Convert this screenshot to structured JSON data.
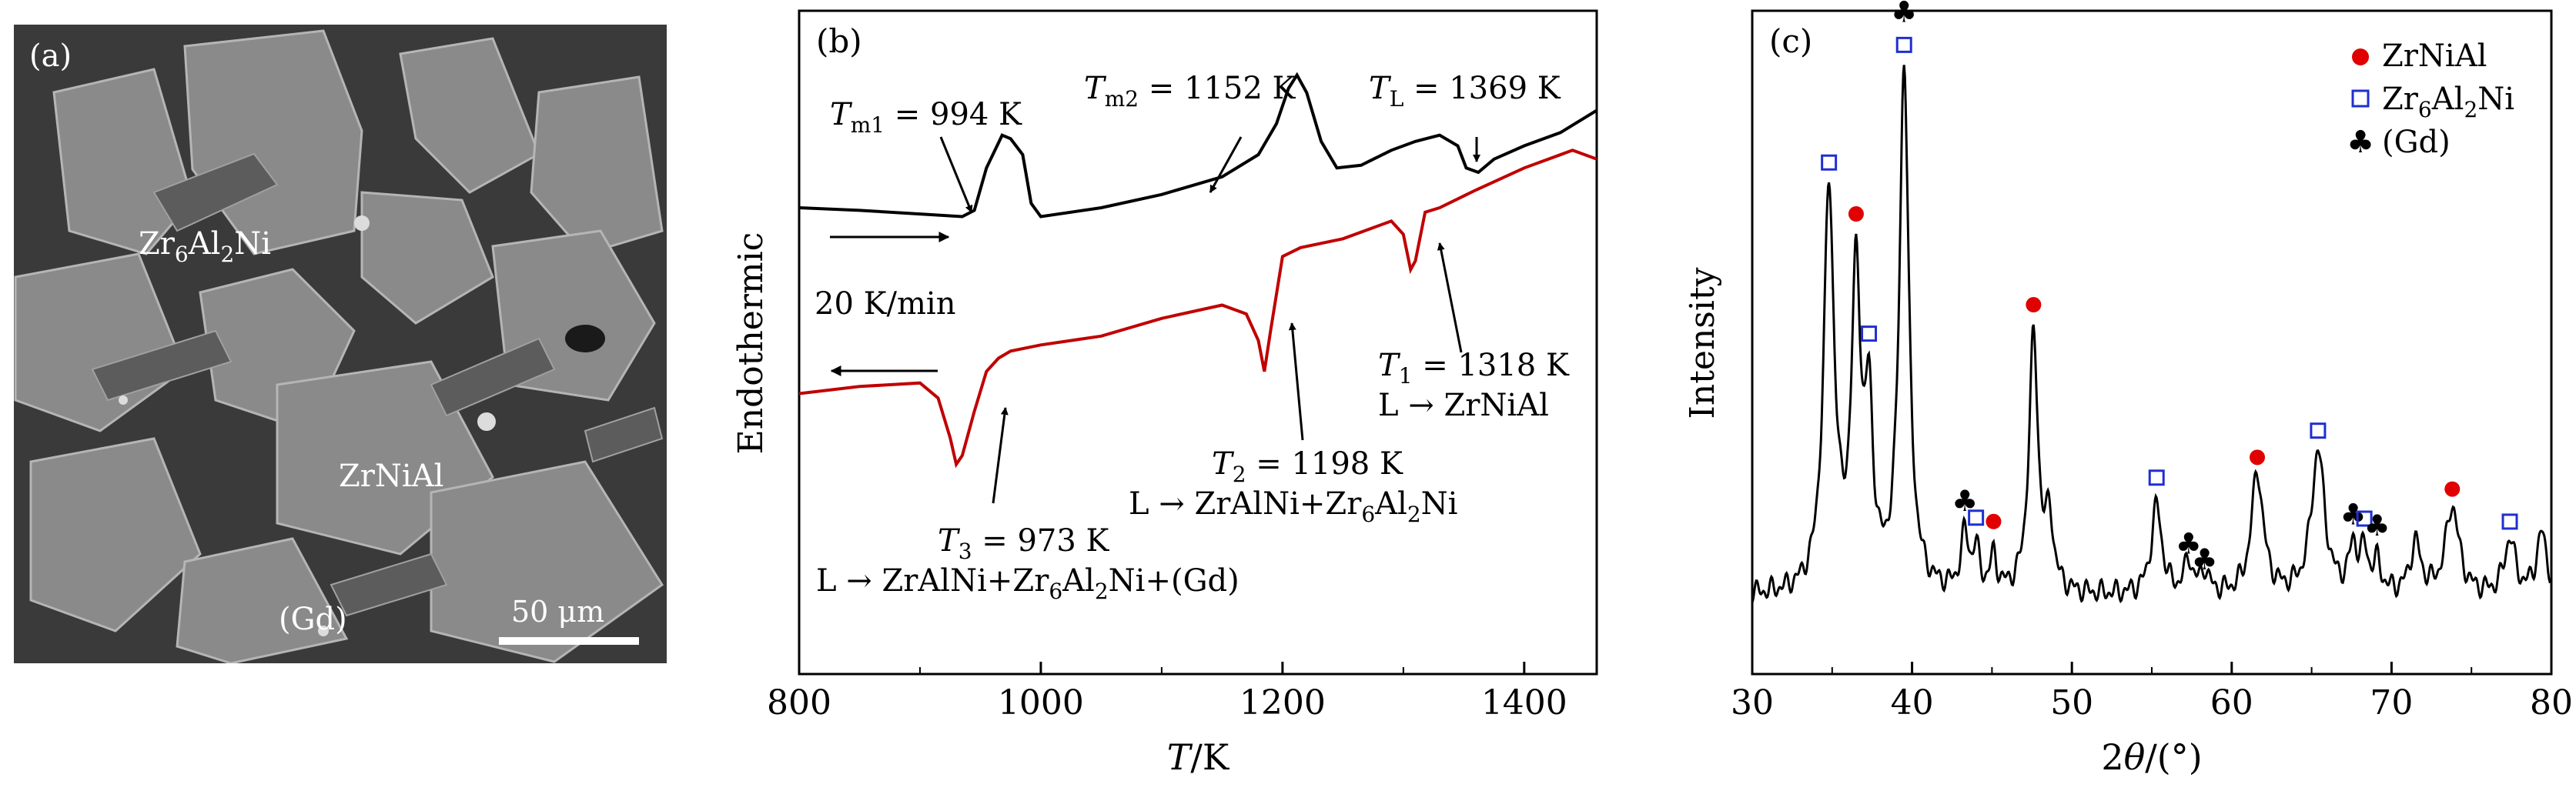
{
  "panel_a": {
    "label": "(a)",
    "phase_labels": {
      "zr6al2ni": "Zr6Al2Ni",
      "zrnial": "ZrNiAl",
      "gd": "(Gd)"
    },
    "scale_bar": "50 μm"
  },
  "chart_data": [
    {
      "type": "line",
      "panel_label": "(b)",
      "xlabel": "T/K",
      "ylabel": "Endothermic",
      "xlim": [
        800,
        1460
      ],
      "xticks": [
        800,
        1000,
        1200,
        1400
      ],
      "yticks_shown": false,
      "series": [
        {
          "name": "",
          "direction": "heating",
          "color": "#000000",
          "x": [
            800,
            850,
            900,
            935,
            945,
            955,
            968,
            975,
            985,
            992,
            1000,
            1050,
            1100,
            1150,
            1180,
            1195,
            1205,
            1212,
            1220,
            1232,
            1245,
            1265,
            1290,
            1310,
            1330,
            1345,
            1352,
            1362,
            1375,
            1400,
            1430,
            1460
          ],
          "y": [
            0.0,
            -0.03,
            -0.07,
            -0.1,
            -0.03,
            0.45,
            0.82,
            0.78,
            0.6,
            0.05,
            -0.1,
            0.0,
            0.15,
            0.35,
            0.6,
            0.95,
            1.35,
            1.5,
            1.3,
            0.75,
            0.45,
            0.48,
            0.65,
            0.75,
            0.82,
            0.7,
            0.45,
            0.4,
            0.55,
            0.7,
            0.85,
            1.1
          ]
        },
        {
          "name": "",
          "direction": "cooling",
          "color": "#c00000",
          "x": [
            800,
            850,
            900,
            915,
            925,
            930,
            935,
            945,
            955,
            965,
            975,
            1000,
            1050,
            1100,
            1150,
            1170,
            1180,
            1185,
            1190,
            1200,
            1215,
            1250,
            1290,
            1300,
            1306,
            1310,
            1318,
            1330,
            1360,
            1400,
            1440,
            1460
          ],
          "y": [
            -2.1,
            -2.02,
            -1.98,
            -2.15,
            -2.6,
            -2.9,
            -2.8,
            -2.3,
            -1.85,
            -1.7,
            -1.62,
            -1.55,
            -1.45,
            -1.25,
            -1.1,
            -1.2,
            -1.5,
            -1.85,
            -1.4,
            -0.55,
            -0.45,
            -0.35,
            -0.15,
            -0.3,
            -0.7,
            -0.6,
            -0.05,
            0.0,
            0.2,
            0.45,
            0.65,
            0.55
          ]
        }
      ],
      "annotations": [
        {
          "id": "tm1",
          "sym": "T",
          "sub": "m1",
          "text": " = 994 K"
        },
        {
          "id": "tm2",
          "sym": "T",
          "sub": "m2",
          "text": " = 1152 K"
        },
        {
          "id": "tl",
          "sym": "T",
          "sub": "L",
          "text": " = 1369 K"
        },
        {
          "id": "t1",
          "sym": "T",
          "sub": "1",
          "text": " = 1318 K",
          "line2": "L → ZrNiAl"
        },
        {
          "id": "t2",
          "sym": "T",
          "sub": "2",
          "text": " = 1198 K",
          "line2": "L → ZrAlNi+Zr6Al2Ni"
        },
        {
          "id": "t3",
          "sym": "T",
          "sub": "3",
          "text": " = 973 K",
          "line2": "L → ZrAlNi+Zr6Al2Ni+(Gd)"
        }
      ],
      "rate_label": "20 K/min"
    },
    {
      "type": "line",
      "panel_label": "(c)",
      "xlabel": "2θ/(°)",
      "ylabel": "Intensity",
      "xlim": [
        30,
        80
      ],
      "xticks": [
        30,
        40,
        50,
        60,
        70,
        80
      ],
      "yticks_shown": false,
      "legend_position": "top-right",
      "legend": [
        {
          "label": "ZrNiAl",
          "marker": "filled-circle",
          "color": "#e00000"
        },
        {
          "label": "Zr6Al2Ni",
          "marker": "open-square",
          "color": "#1f2fd0"
        },
        {
          "label": "(Gd)",
          "marker": "club",
          "color": "#000000"
        }
      ],
      "peaks": [
        {
          "two_theta": 34.8,
          "height": 0.72,
          "width": 0.4
        },
        {
          "two_theta": 36.5,
          "height": 0.55,
          "width": 0.35
        },
        {
          "two_theta": 37.3,
          "height": 0.3,
          "width": 0.3
        },
        {
          "two_theta": 39.5,
          "height": 0.95,
          "width": 0.35
        },
        {
          "two_theta": 43.3,
          "height": 0.1,
          "width": 0.3
        },
        {
          "two_theta": 44.0,
          "height": 0.07,
          "width": 0.25
        },
        {
          "two_theta": 45.1,
          "height": 0.06,
          "width": 0.25
        },
        {
          "two_theta": 47.6,
          "height": 0.46,
          "width": 0.35
        },
        {
          "two_theta": 48.6,
          "height": 0.12,
          "width": 0.3
        },
        {
          "two_theta": 55.3,
          "height": 0.16,
          "width": 0.4
        },
        {
          "two_theta": 57.3,
          "height": 0.06,
          "width": 0.3
        },
        {
          "two_theta": 58.3,
          "height": 0.04,
          "width": 0.3
        },
        {
          "two_theta": 61.6,
          "height": 0.22,
          "width": 0.45
        },
        {
          "two_theta": 65.4,
          "height": 0.26,
          "width": 0.5
        },
        {
          "two_theta": 67.6,
          "height": 0.08,
          "width": 0.3
        },
        {
          "two_theta": 68.3,
          "height": 0.07,
          "width": 0.3
        },
        {
          "two_theta": 69.1,
          "height": 0.05,
          "width": 0.3
        },
        {
          "two_theta": 71.5,
          "height": 0.09,
          "width": 0.4
        },
        {
          "two_theta": 73.8,
          "height": 0.16,
          "width": 0.5
        },
        {
          "two_theta": 77.4,
          "height": 0.1,
          "width": 0.4
        },
        {
          "two_theta": 79.4,
          "height": 0.11,
          "width": 0.4
        }
      ],
      "markers": [
        {
          "two_theta": 34.8,
          "type": "square"
        },
        {
          "two_theta": 36.5,
          "type": "circle"
        },
        {
          "two_theta": 37.3,
          "type": "square"
        },
        {
          "two_theta": 39.5,
          "type": "square"
        },
        {
          "two_theta": 39.5,
          "type": "club"
        },
        {
          "two_theta": 43.3,
          "type": "club"
        },
        {
          "two_theta": 44.0,
          "type": "square"
        },
        {
          "two_theta": 45.1,
          "type": "circle"
        },
        {
          "two_theta": 47.6,
          "type": "circle"
        },
        {
          "two_theta": 55.3,
          "type": "square"
        },
        {
          "two_theta": 57.3,
          "type": "club"
        },
        {
          "two_theta": 58.3,
          "type": "club"
        },
        {
          "two_theta": 61.6,
          "type": "circle"
        },
        {
          "two_theta": 65.4,
          "type": "square"
        },
        {
          "two_theta": 67.6,
          "type": "club"
        },
        {
          "two_theta": 68.3,
          "type": "square"
        },
        {
          "two_theta": 69.1,
          "type": "club"
        },
        {
          "two_theta": 73.8,
          "type": "circle"
        },
        {
          "two_theta": 77.4,
          "type": "square"
        }
      ]
    }
  ]
}
